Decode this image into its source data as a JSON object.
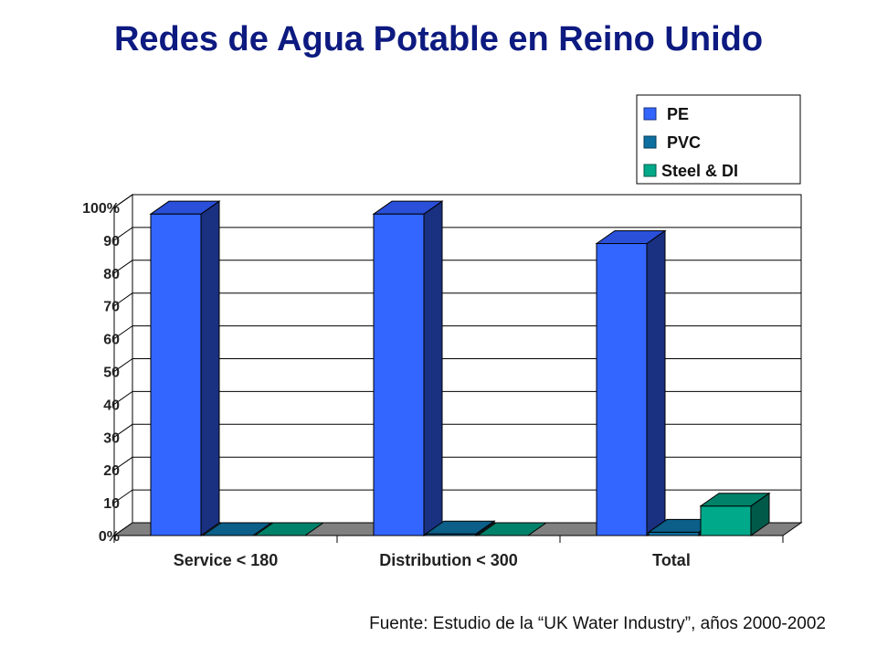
{
  "title": "Redes de Agua Potable en Reino Unido",
  "source": "Fuente: Estudio de la “UK Water Industry”, años 2000-2002",
  "chart_data": {
    "type": "bar",
    "categories": [
      "Service < 180",
      "Distribution < 300",
      "Total"
    ],
    "series": [
      {
        "name": "PE",
        "values": [
          98,
          98,
          89
        ],
        "color": "#3366ff",
        "side": "#1a3080",
        "top": "#2a4fd9"
      },
      {
        "name": "PVC",
        "values": [
          0,
          0.5,
          1
        ],
        "color": "#0d6fa0",
        "side": "#073c57",
        "top": "#0b5f88"
      },
      {
        "name": "Steel & DI",
        "values": [
          0,
          0,
          9
        ],
        "color": "#00a98a",
        "side": "#005a4a",
        "top": "#00816a"
      }
    ],
    "yticks": [
      "0%",
      "10",
      "20",
      "30",
      "40",
      "50",
      "60",
      "70",
      "80",
      "90",
      "100%"
    ],
    "ylim": [
      0,
      100
    ],
    "grid": true,
    "legend_position": "top-right"
  }
}
